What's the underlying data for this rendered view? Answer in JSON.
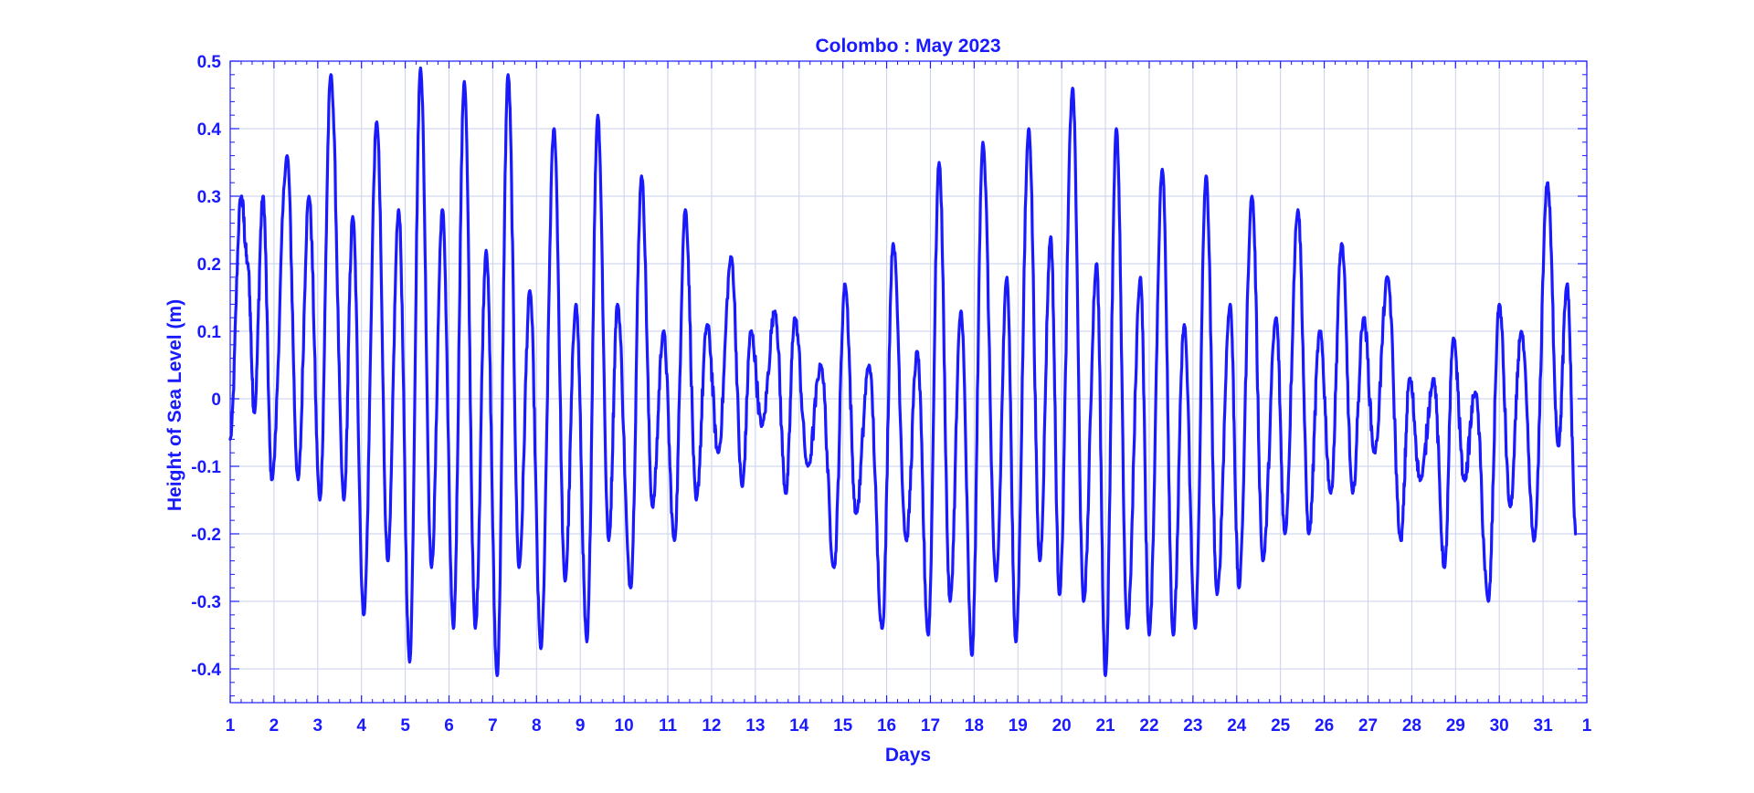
{
  "colors": {
    "line": "#1a1aff",
    "text": "#1a1aff",
    "axis": "#1a1aff",
    "grid": "#c9d2ea",
    "background": "#ffffff"
  },
  "chart_data": {
    "type": "line",
    "title": "Colombo : May 2023",
    "xlabel": "Days",
    "ylabel": "Height of Sea Level (m)",
    "xlim": [
      1,
      32
    ],
    "ylim": [
      -0.45,
      0.5
    ],
    "grid": true,
    "legend": "none",
    "x_tick_labels": [
      "1",
      "2",
      "3",
      "4",
      "5",
      "6",
      "7",
      "8",
      "9",
      "10",
      "11",
      "12",
      "13",
      "14",
      "15",
      "16",
      "17",
      "18",
      "19",
      "20",
      "21",
      "22",
      "23",
      "24",
      "25",
      "26",
      "27",
      "28",
      "29",
      "30",
      "31",
      "1"
    ],
    "y_ticks": [
      0.5,
      0.4,
      0.3,
      0.2,
      0.1,
      0,
      -0.1,
      -0.2,
      -0.3,
      -0.4
    ],
    "y_tick_labels": [
      "0.5",
      "0.4",
      "0.3",
      "0.2",
      "0.1",
      "0",
      "-0.1",
      "-0.2",
      "-0.3",
      "-0.4"
    ],
    "series": [
      {
        "x_unit": "day of month",
        "y_unit": "m",
        "points": [
          [
            1.0,
            -0.06
          ],
          [
            1.25,
            0.3
          ],
          [
            1.4,
            0.2
          ],
          [
            1.55,
            -0.02
          ],
          [
            1.75,
            0.3
          ],
          [
            1.95,
            -0.12
          ],
          [
            2.3,
            0.36
          ],
          [
            2.55,
            -0.12
          ],
          [
            2.8,
            0.3
          ],
          [
            3.05,
            -0.15
          ],
          [
            3.3,
            0.48
          ],
          [
            3.6,
            -0.15
          ],
          [
            3.8,
            0.27
          ],
          [
            4.05,
            -0.32
          ],
          [
            4.35,
            0.41
          ],
          [
            4.6,
            -0.24
          ],
          [
            4.85,
            0.28
          ],
          [
            5.1,
            -0.39
          ],
          [
            5.35,
            0.49
          ],
          [
            5.6,
            -0.25
          ],
          [
            5.85,
            0.28
          ],
          [
            6.1,
            -0.34
          ],
          [
            6.35,
            0.47
          ],
          [
            6.6,
            -0.34
          ],
          [
            6.85,
            0.22
          ],
          [
            7.1,
            -0.41
          ],
          [
            7.35,
            0.48
          ],
          [
            7.6,
            -0.25
          ],
          [
            7.85,
            0.16
          ],
          [
            8.1,
            -0.37
          ],
          [
            8.4,
            0.4
          ],
          [
            8.65,
            -0.27
          ],
          [
            8.9,
            0.14
          ],
          [
            9.15,
            -0.36
          ],
          [
            9.4,
            0.42
          ],
          [
            9.65,
            -0.21
          ],
          [
            9.85,
            0.14
          ],
          [
            10.15,
            -0.28
          ],
          [
            10.4,
            0.33
          ],
          [
            10.65,
            -0.16
          ],
          [
            10.9,
            0.1
          ],
          [
            11.15,
            -0.21
          ],
          [
            11.4,
            0.28
          ],
          [
            11.65,
            -0.15
          ],
          [
            11.9,
            0.11
          ],
          [
            12.15,
            -0.08
          ],
          [
            12.45,
            0.21
          ],
          [
            12.7,
            -0.13
          ],
          [
            12.9,
            0.1
          ],
          [
            13.15,
            -0.04
          ],
          [
            13.45,
            0.13
          ],
          [
            13.7,
            -0.14
          ],
          [
            13.9,
            0.12
          ],
          [
            14.2,
            -0.1
          ],
          [
            14.5,
            0.05
          ],
          [
            14.8,
            -0.25
          ],
          [
            15.05,
            0.17
          ],
          [
            15.3,
            -0.17
          ],
          [
            15.6,
            0.05
          ],
          [
            15.9,
            -0.34
          ],
          [
            16.15,
            0.23
          ],
          [
            16.45,
            -0.21
          ],
          [
            16.7,
            0.07
          ],
          [
            16.95,
            -0.35
          ],
          [
            17.2,
            0.35
          ],
          [
            17.45,
            -0.3
          ],
          [
            17.7,
            0.13
          ],
          [
            17.95,
            -0.38
          ],
          [
            18.2,
            0.38
          ],
          [
            18.5,
            -0.27
          ],
          [
            18.75,
            0.18
          ],
          [
            18.95,
            -0.36
          ],
          [
            19.25,
            0.4
          ],
          [
            19.5,
            -0.24
          ],
          [
            19.75,
            0.24
          ],
          [
            19.95,
            -0.29
          ],
          [
            20.25,
            0.46
          ],
          [
            20.5,
            -0.3
          ],
          [
            20.8,
            0.2
          ],
          [
            21.0,
            -0.41
          ],
          [
            21.25,
            0.4
          ],
          [
            21.5,
            -0.34
          ],
          [
            21.8,
            0.18
          ],
          [
            22.0,
            -0.35
          ],
          [
            22.3,
            0.34
          ],
          [
            22.55,
            -0.35
          ],
          [
            22.8,
            0.11
          ],
          [
            23.05,
            -0.34
          ],
          [
            23.3,
            0.33
          ],
          [
            23.55,
            -0.29
          ],
          [
            23.85,
            0.14
          ],
          [
            24.05,
            -0.28
          ],
          [
            24.35,
            0.3
          ],
          [
            24.6,
            -0.24
          ],
          [
            24.9,
            0.12
          ],
          [
            25.1,
            -0.2
          ],
          [
            25.4,
            0.28
          ],
          [
            25.65,
            -0.2
          ],
          [
            25.9,
            0.1
          ],
          [
            26.15,
            -0.14
          ],
          [
            26.4,
            0.23
          ],
          [
            26.65,
            -0.14
          ],
          [
            26.9,
            0.12
          ],
          [
            27.15,
            -0.08
          ],
          [
            27.45,
            0.18
          ],
          [
            27.75,
            -0.21
          ],
          [
            27.95,
            0.03
          ],
          [
            28.2,
            -0.12
          ],
          [
            28.5,
            0.03
          ],
          [
            28.75,
            -0.25
          ],
          [
            28.95,
            0.09
          ],
          [
            29.2,
            -0.12
          ],
          [
            29.45,
            0.01
          ],
          [
            29.75,
            -0.3
          ],
          [
            30.0,
            0.14
          ],
          [
            30.25,
            -0.16
          ],
          [
            30.5,
            0.1
          ],
          [
            30.8,
            -0.21
          ],
          [
            31.1,
            0.32
          ],
          [
            31.35,
            -0.07
          ],
          [
            31.55,
            0.17
          ],
          [
            31.75,
            -0.2
          ]
        ]
      }
    ]
  }
}
